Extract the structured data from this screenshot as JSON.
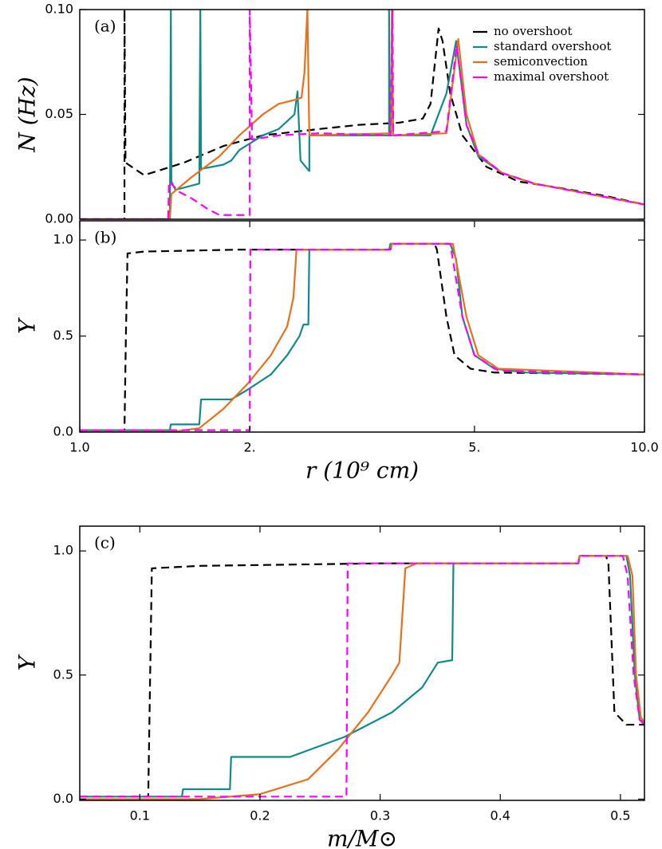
{
  "chart_data": [
    {
      "type": "line",
      "panel_label": "(a)",
      "ylabel": "N (Hz)",
      "xscale": "log",
      "xlim": [
        1.0,
        10.0
      ],
      "ylim": [
        0,
        0.1
      ],
      "yticks": [
        {
          "value": 0,
          "label": "0.00"
        },
        {
          "value": 0.05,
          "label": "0.05"
        },
        {
          "value": 0.1,
          "label": "0.10"
        }
      ],
      "legend": "upper right",
      "series": [
        {
          "name": "no overshoot",
          "color": "#000000",
          "linestyle": "dashed",
          "x": [
            1.0,
            1.2,
            1.2,
            1.205,
            1.3,
            1.53,
            1.8,
            2.11,
            2.65,
            3.12,
            3.67,
            4.05,
            4.18,
            4.32,
            4.39,
            4.53,
            4.76,
            5.25,
            5.98,
            7.05,
            8.57,
            10.0
          ],
          "values": [
            0,
            0,
            0.1,
            0.027,
            0.021,
            0.027,
            0.035,
            0.04,
            0.043,
            0.045,
            0.046,
            0.048,
            0.055,
            0.091,
            0.085,
            0.06,
            0.04,
            0.025,
            0.018,
            0.015,
            0.011,
            0.007
          ]
        },
        {
          "name": "standard overshoot",
          "color": "#138a8a",
          "linestyle": "solid",
          "x": [
            1.0,
            1.444,
            1.45,
            1.453,
            1.477,
            1.526,
            1.628,
            1.635,
            1.64,
            1.795,
            1.855,
            1.917,
            2.11,
            2.25,
            2.4,
            2.43,
            2.46,
            2.53,
            2.55,
            2.55,
            3.53,
            3.53,
            3.54,
            4.18,
            4.46,
            4.64,
            4.84,
            5.08,
            5.6,
            6.38,
            8.0,
            10.0
          ],
          "values": [
            0,
            0,
            0.1,
            0.018,
            0.014,
            0.015,
            0.017,
            0.1,
            0.024,
            0.026,
            0.028,
            0.033,
            0.04,
            0.043,
            0.05,
            0.061,
            0.028,
            0.024,
            0.023,
            0.04,
            0.04,
            0.1,
            0.04,
            0.04,
            0.06,
            0.085,
            0.045,
            0.03,
            0.022,
            0.017,
            0.012,
            0.007
          ]
        },
        {
          "name": "semiconvection",
          "color": "#e8701a",
          "linestyle": "solid",
          "x": [
            1.0,
            1.444,
            1.453,
            1.577,
            1.767,
            1.917,
            2.11,
            2.25,
            2.41,
            2.47,
            2.5,
            2.53,
            2.55,
            3.56,
            3.57,
            3.59,
            4.46,
            4.68,
            4.84,
            5.08,
            5.6,
            6.38,
            8.0,
            10.0
          ],
          "values": [
            0,
            0,
            0.012,
            0.02,
            0.03,
            0.04,
            0.05,
            0.055,
            0.057,
            0.058,
            0.07,
            0.1,
            0.04,
            0.041,
            0.1,
            0.04,
            0.041,
            0.086,
            0.05,
            0.031,
            0.022,
            0.017,
            0.012,
            0.007
          ]
        },
        {
          "name": "maximal overshoot",
          "color": "#ff00ff",
          "linestyle": "dashed",
          "x": [
            1.0,
            1.434,
            1.439,
            1.501,
            1.577,
            1.682,
            1.767,
            2.0,
            2.0,
            2.019,
            2.25,
            2.65,
            3.55,
            3.58,
            3.59,
            4.46,
            4.65,
            4.84,
            5.08,
            5.6,
            6.38,
            8.0,
            10.0
          ],
          "values": [
            0,
            0,
            0.018,
            0.013,
            0.01,
            0.005,
            0.002,
            0.002,
            0.1,
            0.038,
            0.04,
            0.041,
            0.04,
            0.1,
            0.04,
            0.042,
            0.083,
            0.045,
            0.031,
            0.022,
            0.017,
            0.012,
            0.007
          ]
        }
      ]
    },
    {
      "type": "line",
      "panel_label": "(b)",
      "ylabel": "Y",
      "xlabel": "r (10⁹ cm)",
      "xscale": "log",
      "xlim": [
        1.0,
        10.0
      ],
      "ylim": [
        0,
        1.1
      ],
      "xticks": [
        {
          "value": 1,
          "label": "1.0"
        },
        {
          "value": 2,
          "label": "2."
        },
        {
          "value": 5,
          "label": "5."
        },
        {
          "value": 10,
          "label": "10.0"
        }
      ],
      "yticks": [
        {
          "value": 0,
          "label": "0.0"
        },
        {
          "value": 0.5,
          "label": "0.5"
        },
        {
          "value": 1,
          "label": "1.0"
        }
      ],
      "series": [
        {
          "color": "#000000",
          "linestyle": "dashed",
          "x": [
            1.0,
            1.2,
            1.207,
            1.215,
            1.3,
            1.917,
            3.55,
            3.56,
            4.25,
            4.29,
            4.46,
            4.61,
            4.92,
            5.42,
            10.0
          ],
          "values": [
            0.01,
            0.01,
            0.5,
            0.93,
            0.94,
            0.95,
            0.95,
            0.98,
            0.98,
            0.95,
            0.6,
            0.4,
            0.33,
            0.31,
            0.3
          ]
        },
        {
          "color": "#138a8a",
          "linestyle": "solid",
          "x": [
            1.0,
            1.444,
            1.45,
            1.628,
            1.64,
            1.855,
            1.981,
            2.18,
            2.33,
            2.45,
            2.49,
            2.54,
            2.55,
            3.53,
            3.55,
            4.53,
            4.64,
            4.76,
            5.0,
            5.42,
            6.18,
            10.0
          ],
          "values": [
            0.01,
            0.01,
            0.04,
            0.04,
            0.17,
            0.17,
            0.22,
            0.3,
            0.4,
            0.5,
            0.56,
            0.56,
            0.95,
            0.95,
            0.98,
            0.98,
            0.9,
            0.6,
            0.4,
            0.33,
            0.31,
            0.3
          ]
        },
        {
          "color": "#e8701a",
          "linestyle": "solid",
          "x": [
            1.0,
            1.444,
            1.628,
            1.795,
            1.981,
            2.18,
            2.33,
            2.39,
            2.42,
            3.55,
            3.57,
            4.58,
            4.84,
            5.08,
            5.51,
            10.0
          ],
          "values": [
            0,
            0,
            0.02,
            0.12,
            0.25,
            0.4,
            0.55,
            0.7,
            0.95,
            0.95,
            0.98,
            0.98,
            0.6,
            0.4,
            0.33,
            0.3
          ]
        },
        {
          "color": "#ff00ff",
          "linestyle": "dashed",
          "x": [
            1.0,
            2.0,
            2.005,
            3.55,
            3.58,
            4.53,
            4.76,
            5.0,
            5.51,
            10.0
          ],
          "values": [
            0.01,
            0.01,
            0.95,
            0.95,
            0.98,
            0.98,
            0.6,
            0.4,
            0.32,
            0.3
          ]
        }
      ]
    },
    {
      "type": "line",
      "panel_label": "(c)",
      "ylabel": "Y",
      "xlabel": "m/M⊙",
      "xscale": "linear",
      "xlim": [
        0.05,
        0.52
      ],
      "ylim": [
        -0.005,
        1.1
      ],
      "xticks": [
        0.1,
        0.2,
        0.3,
        0.4,
        0.5
      ],
      "yticks": [
        {
          "value": 0,
          "label": "0.0"
        },
        {
          "value": 0.5,
          "label": "0.5"
        },
        {
          "value": 1,
          "label": "1.0"
        }
      ],
      "series": [
        {
          "color": "#000000",
          "linestyle": "dashed",
          "x": [
            0.05,
            0.107,
            0.11,
            0.15,
            0.3,
            0.465,
            0.466,
            0.488,
            0.49,
            0.495,
            0.505,
            0.52
          ],
          "values": [
            0.01,
            0.01,
            0.93,
            0.94,
            0.95,
            0.95,
            0.98,
            0.98,
            0.95,
            0.35,
            0.3,
            0.3
          ]
        },
        {
          "color": "#138a8a",
          "linestyle": "solid",
          "x": [
            0.05,
            0.135,
            0.136,
            0.175,
            0.176,
            0.225,
            0.27,
            0.31,
            0.335,
            0.348,
            0.36,
            0.361,
            0.465,
            0.466,
            0.505,
            0.508,
            0.512,
            0.516,
            0.52
          ],
          "values": [
            0.01,
            0.01,
            0.04,
            0.04,
            0.17,
            0.17,
            0.25,
            0.35,
            0.45,
            0.55,
            0.56,
            0.95,
            0.95,
            0.98,
            0.98,
            0.9,
            0.5,
            0.32,
            0.31
          ]
        },
        {
          "color": "#e8701a",
          "linestyle": "solid",
          "x": [
            0.05,
            0.15,
            0.2,
            0.24,
            0.265,
            0.29,
            0.31,
            0.316,
            0.321,
            0.33,
            0.465,
            0.466,
            0.506,
            0.51,
            0.513,
            0.517,
            0.52
          ],
          "values": [
            0,
            0,
            0.02,
            0.08,
            0.2,
            0.35,
            0.5,
            0.55,
            0.93,
            0.95,
            0.95,
            0.98,
            0.98,
            0.9,
            0.5,
            0.33,
            0.31
          ]
        },
        {
          "color": "#ff00ff",
          "linestyle": "dashed",
          "x": [
            0.05,
            0.272,
            0.273,
            0.465,
            0.466,
            0.502,
            0.506,
            0.511,
            0.516,
            0.52
          ],
          "values": [
            0.01,
            0.01,
            0.95,
            0.95,
            0.98,
            0.98,
            0.9,
            0.5,
            0.32,
            0.3
          ]
        }
      ]
    }
  ]
}
